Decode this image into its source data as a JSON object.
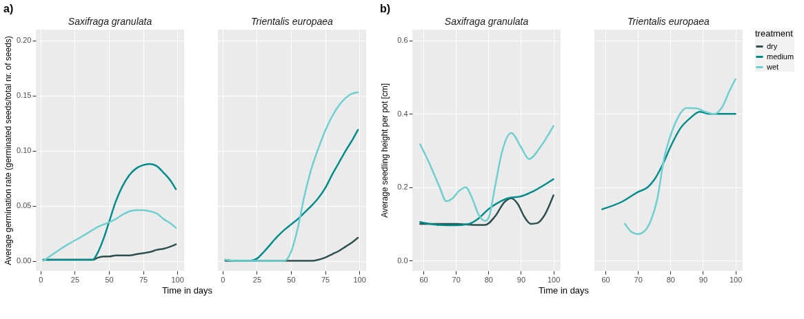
{
  "chart_data": [
    {
      "type": "line",
      "title": "Saxifraga granulata",
      "annotations": [
        "a)"
      ],
      "xlabel": "Time in days",
      "ylabel": "Average germination rate (germinated seeds/total nr. of seeds)",
      "xlim": [
        -3.5,
        105
      ],
      "ylim": [
        -0.009,
        0.21
      ],
      "xticks": [
        0,
        25,
        50,
        75,
        100
      ],
      "yticks": [
        {
          "value": 0,
          "label": "0.00"
        },
        {
          "value": 0.05,
          "label": "0.05"
        },
        {
          "value": 0.1,
          "label": "0.10"
        },
        {
          "value": 0.15,
          "label": "0.15"
        },
        {
          "value": 0.2,
          "label": "0.20"
        }
      ],
      "grid": true,
      "legend": false,
      "series": [
        {
          "color": "#2f4f4f",
          "x": [
            2,
            10,
            20,
            30,
            38,
            42,
            46,
            50,
            55,
            60,
            65,
            70,
            75,
            80,
            85,
            90,
            95,
            99
          ],
          "values": [
            0.001,
            0.001,
            0.001,
            0.001,
            0.001,
            0.003,
            0.004,
            0.004,
            0.005,
            0.005,
            0.005,
            0.006,
            0.007,
            0.008,
            0.01,
            0.011,
            0.013,
            0.015
          ]
        },
        {
          "color": "#008b8b",
          "x": [
            2,
            10,
            20,
            30,
            38,
            42,
            46,
            50,
            55,
            60,
            65,
            70,
            75,
            80,
            85,
            90,
            95,
            99
          ],
          "values": [
            0.001,
            0.001,
            0.001,
            0.001,
            0.001,
            0.008,
            0.02,
            0.035,
            0.054,
            0.068,
            0.078,
            0.084,
            0.087,
            0.088,
            0.086,
            0.08,
            0.073,
            0.065
          ]
        },
        {
          "color": "#6fcfcf",
          "x": [
            2,
            10,
            20,
            30,
            38,
            42,
            46,
            50,
            55,
            60,
            65,
            70,
            75,
            80,
            85,
            90,
            95,
            99
          ],
          "values": [
            0.0,
            0.007,
            0.015,
            0.022,
            0.028,
            0.031,
            0.033,
            0.035,
            0.038,
            0.042,
            0.045,
            0.046,
            0.046,
            0.045,
            0.043,
            0.038,
            0.034,
            0.03
          ]
        }
      ]
    },
    {
      "type": "line",
      "title": "Trientalis europaea",
      "xlim": [
        -3.5,
        105
      ],
      "ylim": [
        -0.009,
        0.21
      ],
      "xticks": [
        0,
        25,
        50,
        75,
        100
      ],
      "yticks": [
        0,
        0.05,
        0.1,
        0.15,
        0.2
      ],
      "tick_labels": "x",
      "grid": true,
      "legend": false,
      "series": [
        {
          "color": "#2f4f4f",
          "x": [
            2,
            10,
            20,
            25,
            30,
            40,
            45,
            50,
            55,
            60,
            65,
            70,
            75,
            80,
            85,
            90,
            95,
            99
          ],
          "values": [
            0,
            0,
            0,
            0,
            0,
            0,
            0,
            0,
            0,
            0,
            0,
            0.001,
            0.003,
            0.006,
            0.009,
            0.013,
            0.017,
            0.021
          ]
        },
        {
          "color": "#008b8b",
          "x": [
            2,
            10,
            20,
            25,
            30,
            40,
            45,
            50,
            55,
            60,
            65,
            70,
            75,
            80,
            85,
            90,
            95,
            99
          ],
          "values": [
            0.001,
            0,
            0,
            0.002,
            0.008,
            0.022,
            0.028,
            0.033,
            0.038,
            0.044,
            0.05,
            0.057,
            0.066,
            0.078,
            0.089,
            0.1,
            0.11,
            0.119
          ]
        },
        {
          "color": "#6fcfcf",
          "x": [
            2,
            10,
            20,
            25,
            30,
            40,
            45,
            50,
            55,
            60,
            65,
            70,
            75,
            80,
            85,
            90,
            95,
            99
          ],
          "values": [
            0.001,
            0,
            0,
            0,
            0,
            0,
            0,
            0.008,
            0.03,
            0.06,
            0.084,
            0.102,
            0.118,
            0.131,
            0.141,
            0.148,
            0.152,
            0.153
          ]
        }
      ]
    },
    {
      "type": "line",
      "title": "Saxifraga granulata",
      "annotations": [
        "b)"
      ],
      "xlabel": "Time in days",
      "ylabel": "Average seedling height per pot [cm]",
      "xlim": [
        56.6,
        102.2
      ],
      "ylim": [
        -0.028,
        0.63
      ],
      "xticks": [
        60,
        70,
        80,
        90,
        100
      ],
      "yticks": [
        {
          "value": 0,
          "label": "0.0"
        },
        {
          "value": 0.2,
          "label": "0.2"
        },
        {
          "value": 0.4,
          "label": "0.4"
        },
        {
          "value": 0.6,
          "label": "0.6"
        }
      ],
      "grid": true,
      "legend": false,
      "series": [
        {
          "color": "#2f4f4f",
          "x": [
            59,
            65,
            70,
            76,
            79,
            82,
            85,
            87,
            89,
            91,
            93,
            95,
            97,
            100
          ],
          "values": [
            0.1,
            0.1,
            0.1,
            0.097,
            0.097,
            0.12,
            0.16,
            0.17,
            0.155,
            0.12,
            0.1,
            0.102,
            0.12,
            0.178
          ]
        },
        {
          "color": "#008b8b",
          "x": [
            59,
            62,
            65,
            70,
            74,
            77,
            80,
            83,
            86,
            90,
            94,
            100
          ],
          "values": [
            0.105,
            0.1,
            0.097,
            0.096,
            0.1,
            0.115,
            0.14,
            0.158,
            0.17,
            0.175,
            0.19,
            0.222
          ]
        },
        {
          "color": "#6fcfcf",
          "x": [
            59,
            62,
            65,
            67,
            69,
            71,
            73,
            75,
            77,
            79,
            80,
            82,
            84,
            87,
            90,
            92.5,
            96,
            100
          ],
          "values": [
            0.317,
            0.262,
            0.2,
            0.162,
            0.17,
            0.19,
            0.2,
            0.17,
            0.125,
            0.108,
            0.115,
            0.2,
            0.29,
            0.348,
            0.31,
            0.277,
            0.31,
            0.367
          ]
        }
      ]
    },
    {
      "type": "line",
      "title": "Trientalis europaea",
      "legend_title": "treatment",
      "xlim": [
        56.6,
        102.2
      ],
      "ylim": [
        -0.028,
        0.63
      ],
      "xticks": [
        60,
        70,
        80,
        90,
        100
      ],
      "yticks": [
        0,
        0.2,
        0.4,
        0.6
      ],
      "tick_labels": "x",
      "grid": true,
      "legend": "right",
      "series": [
        {
          "name": "dry",
          "color": "#2f4f4f"
        },
        {
          "name": "medium",
          "color": "#008b8b",
          "x": [
            59,
            65,
            70,
            73,
            75,
            77.5,
            80,
            83,
            86,
            89,
            92,
            96,
            100
          ],
          "values": [
            0.14,
            0.16,
            0.187,
            0.2,
            0.22,
            0.26,
            0.31,
            0.36,
            0.388,
            0.406,
            0.4,
            0.4,
            0.4
          ]
        },
        {
          "name": "wet",
          "color": "#6fcfcf",
          "x": [
            66,
            68,
            70,
            72,
            74,
            76,
            78,
            80,
            82,
            85,
            88,
            91,
            93.5,
            96,
            98,
            100
          ],
          "values": [
            0.1,
            0.078,
            0.072,
            0.08,
            0.11,
            0.17,
            0.277,
            0.34,
            0.385,
            0.416,
            0.415,
            0.405,
            0.4,
            0.42,
            0.46,
            0.495
          ]
        }
      ]
    }
  ]
}
